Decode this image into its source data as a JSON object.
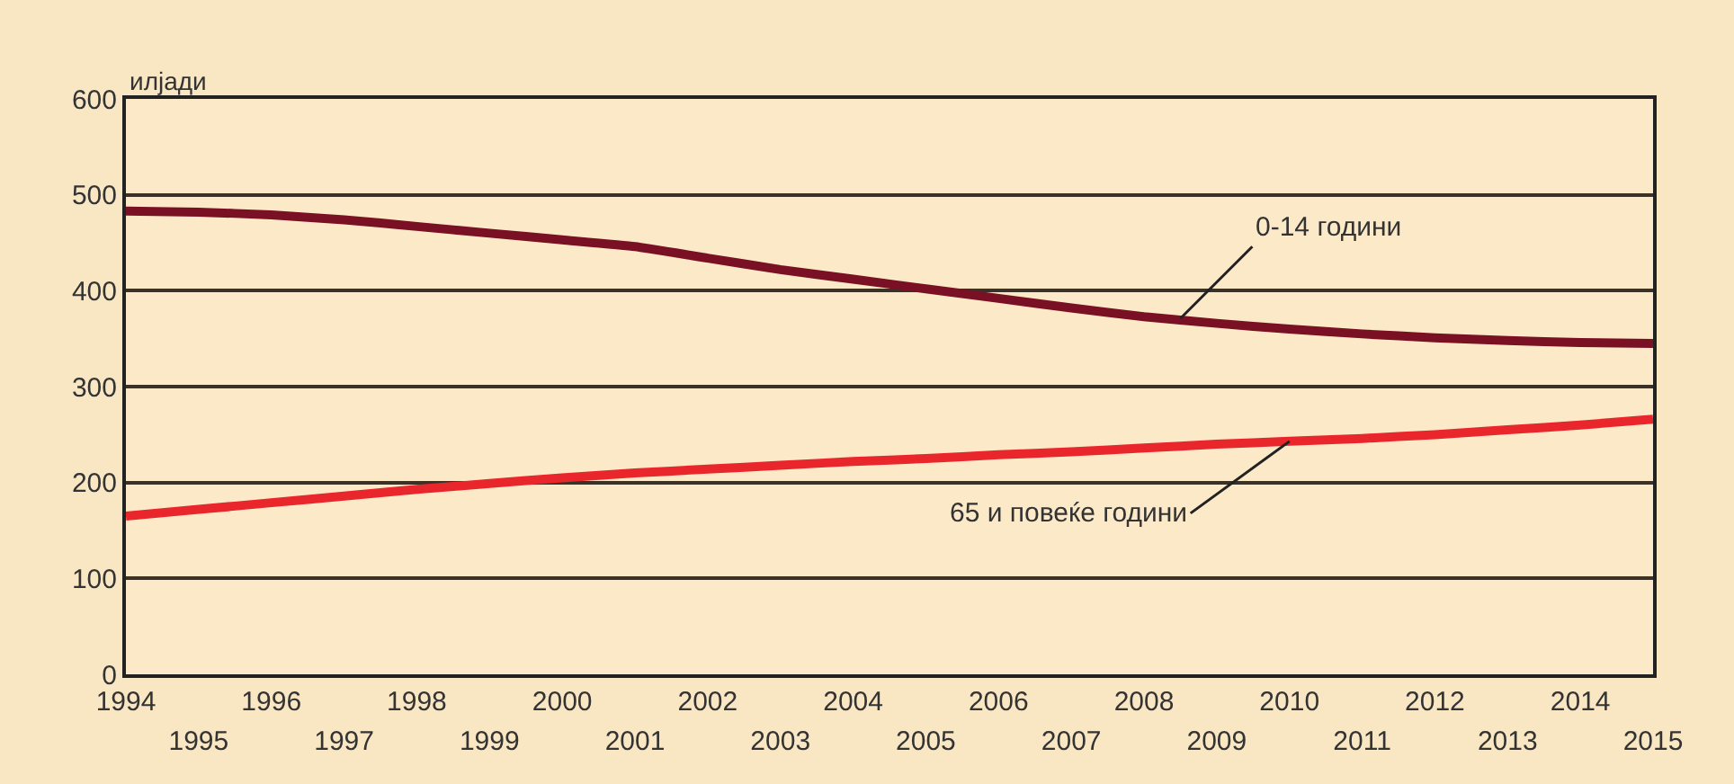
{
  "chart_data": {
    "type": "line",
    "ylabel": "илјади",
    "x": [
      1994,
      1995,
      1996,
      1997,
      1998,
      1999,
      2000,
      2001,
      2002,
      2003,
      2004,
      2005,
      2006,
      2007,
      2008,
      2009,
      2010,
      2011,
      2012,
      2013,
      2014,
      2015
    ],
    "series": [
      {
        "color": "#7a1024",
        "values": [
          483,
          482,
          479,
          474,
          467,
          460,
          453,
          446,
          434,
          422,
          412,
          402,
          392,
          382,
          373,
          366,
          360,
          355,
          351,
          348,
          346,
          345
        ]
      },
      {
        "color": "#e8262b",
        "values": [
          165,
          172,
          179,
          186,
          193,
          199,
          205,
          210,
          214,
          218,
          222,
          225,
          229,
          232,
          236,
          240,
          243,
          246,
          250,
          255,
          260,
          266
        ]
      }
    ],
    "annotations": [
      {
        "text": "0-14 години",
        "x": 2008.5,
        "y": 371
      },
      {
        "text": "65 и повеќе години",
        "x": 2010,
        "y": 243
      }
    ],
    "xlim": [
      1994,
      2015
    ],
    "xticks": [
      1994,
      1996,
      1998,
      2000,
      2002,
      2004,
      2006,
      2008,
      2010,
      2012,
      2014
    ],
    "x2lim": [
      1994,
      2015
    ],
    "x2ticks": [
      1995,
      1997,
      1999,
      2001,
      2003,
      2005,
      2007,
      2009,
      2011,
      2013,
      2015
    ],
    "ylim": [
      0,
      600
    ],
    "yticks": [
      0,
      100,
      200,
      300,
      400,
      500,
      600
    ],
    "grid": "y",
    "line_style": "solid",
    "marker": "none"
  }
}
